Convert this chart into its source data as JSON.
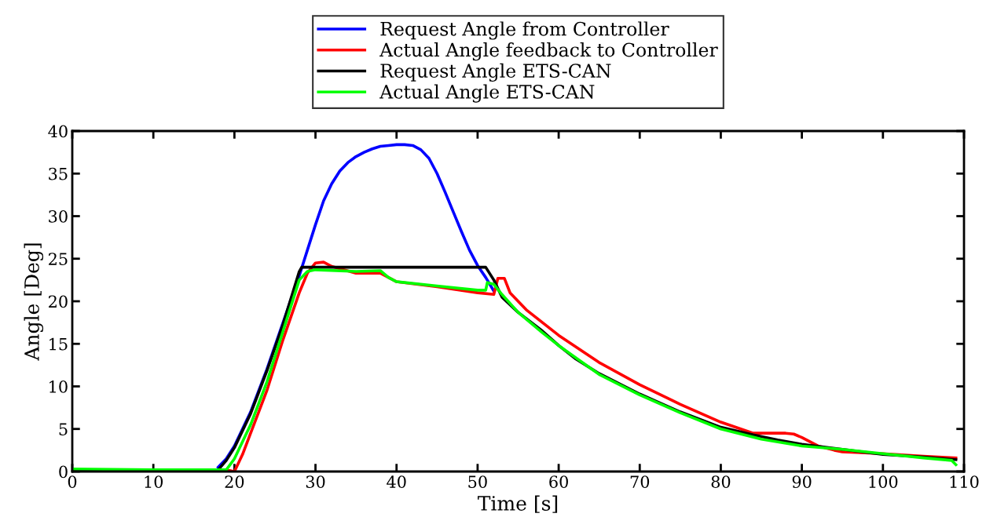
{
  "chart_data": {
    "type": "line",
    "xlabel": "Time [s]",
    "ylabel": "Angle [Deg]",
    "xlim": [
      0,
      110
    ],
    "ylim": [
      0,
      40
    ],
    "xticks": [
      0,
      10,
      20,
      30,
      40,
      50,
      60,
      70,
      80,
      90,
      100,
      110
    ],
    "yticks": [
      0,
      5,
      10,
      15,
      20,
      25,
      30,
      35,
      40
    ],
    "grid": false,
    "legend": "top",
    "line_style": "solid",
    "marker": "none",
    "series": [
      {
        "name": "Request Angle from Controller",
        "color": "#0000ff",
        "x": [
          18,
          19,
          20,
          22,
          24,
          26,
          28,
          29,
          30,
          31,
          32,
          33,
          34,
          35,
          36,
          37,
          38,
          39,
          40,
          41,
          42,
          43,
          44,
          45,
          46,
          47,
          48,
          49,
          50,
          51,
          52
        ],
        "values": [
          0.5,
          1.5,
          3,
          7,
          12,
          17.5,
          23,
          26,
          29,
          31.8,
          33.8,
          35.3,
          36.3,
          37,
          37.5,
          37.9,
          38.2,
          38.3,
          38.4,
          38.4,
          38.3,
          37.8,
          36.8,
          35,
          32.8,
          30.5,
          28.2,
          26,
          24.2,
          22.8,
          21.2
        ]
      },
      {
        "name": "Actual Angle feedback to Controller",
        "color": "#ff0000",
        "x": [
          0,
          19.5,
          20,
          21,
          22,
          24,
          26,
          28,
          29,
          30,
          31,
          32,
          35,
          38,
          39,
          40,
          45,
          50,
          52,
          52.5,
          53.3,
          54,
          56,
          60,
          65,
          70,
          75,
          80,
          84,
          88,
          89,
          90,
          92,
          94,
          95,
          100,
          105,
          109
        ],
        "values": [
          0.1,
          0.1,
          0,
          2,
          4.5,
          9.5,
          15.5,
          21,
          23.3,
          24.5,
          24.6,
          24.1,
          23.3,
          23.3,
          22.8,
          22.3,
          21.7,
          21,
          20.8,
          22.7,
          22.7,
          21,
          19,
          16,
          12.8,
          10.2,
          7.9,
          5.8,
          4.5,
          4.5,
          4.4,
          4,
          3,
          2.5,
          2.3,
          2.1,
          1.8,
          1.6
        ]
      },
      {
        "name": "Request Angle ETS-CAN",
        "color": "#000000",
        "x": [
          0,
          18,
          19,
          20,
          22,
          24,
          26,
          28,
          28.3,
          40,
          51,
          52,
          53,
          55,
          58,
          60,
          62,
          65,
          70,
          75,
          80,
          84,
          87,
          90,
          95,
          100,
          105,
          109
        ],
        "values": [
          0.2,
          0.2,
          1.3,
          2.8,
          6.8,
          11.8,
          17.3,
          23.5,
          24,
          24,
          24,
          22.5,
          20.5,
          18.7,
          16.5,
          14.8,
          13.3,
          11.5,
          9.1,
          7,
          5.2,
          4.3,
          3.7,
          3.2,
          2.6,
          2,
          1.7,
          1.4
        ]
      },
      {
        "name": "Actual Angle ETS-CAN",
        "color": "#00ff00",
        "x": [
          0,
          10,
          19,
          20,
          22,
          24,
          26,
          28,
          29,
          30,
          35,
          38,
          39,
          40,
          45,
          50,
          51,
          51.2,
          52,
          53,
          55,
          58,
          60,
          65,
          70,
          75,
          80,
          85,
          90,
          95,
          100,
          105,
          108.5,
          109
        ],
        "values": [
          0.3,
          0.2,
          0.2,
          1.5,
          5.5,
          10.5,
          16.5,
          22.5,
          23.5,
          23.7,
          23.5,
          23.6,
          22.8,
          22.3,
          21.8,
          21.3,
          21.3,
          22.2,
          22,
          20.8,
          18.7,
          16.3,
          14.8,
          11.4,
          9,
          6.9,
          5,
          3.8,
          3,
          2.6,
          2.1,
          1.6,
          1.3,
          0.8
        ]
      }
    ]
  }
}
